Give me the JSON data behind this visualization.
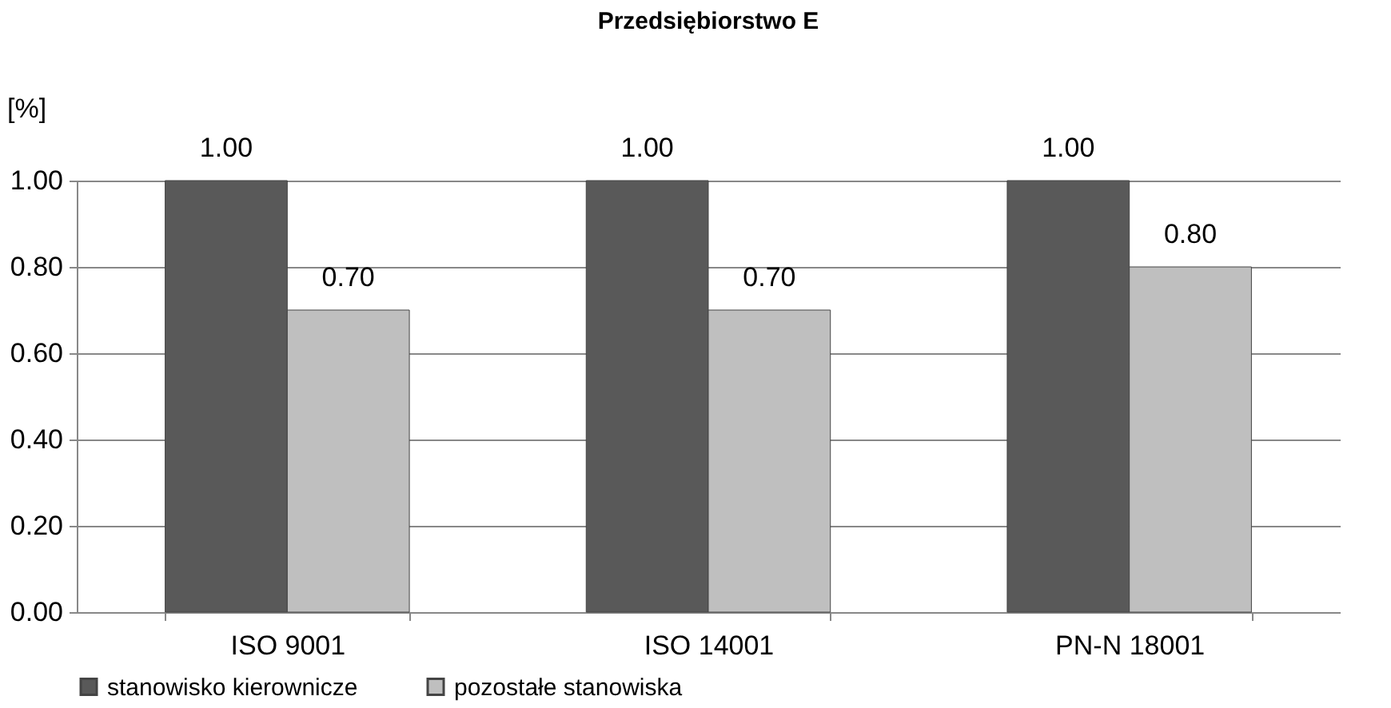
{
  "chart_data": {
    "type": "bar",
    "title": "Przedsiębiorstwo E",
    "ylabel": "[%]",
    "categories": [
      "ISO 9001",
      "ISO 14001",
      "PN-N 18001"
    ],
    "series": [
      {
        "name": "stanowisko kierownicze",
        "color": "#595959",
        "values": [
          1.0,
          1.0,
          1.0
        ],
        "value_labels": [
          "1.00",
          "1.00",
          "1.00"
        ]
      },
      {
        "name": "pozostałe stanowiska",
        "color": "#bfbfbf",
        "values": [
          0.7,
          0.7,
          0.8
        ],
        "value_labels": [
          "0.70",
          "0.70",
          "0.80"
        ]
      }
    ],
    "ylim": [
      0,
      1
    ],
    "yticks": [
      {
        "value": 0,
        "label": "0.00"
      },
      {
        "value": 0.2,
        "label": "0.20"
      },
      {
        "value": 0.4,
        "label": "0.40"
      },
      {
        "value": 0.6,
        "label": "0.60"
      },
      {
        "value": 0.8,
        "label": "0.80"
      },
      {
        "value": 1,
        "label": "1.00"
      }
    ],
    "grid": "y",
    "legend": "bottom"
  }
}
